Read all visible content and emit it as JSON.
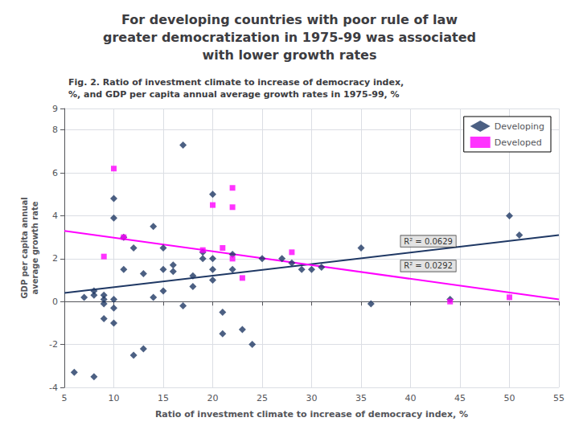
{
  "chart_data": {
    "type": "scatter",
    "title": "For developing countries with poor rule of law\ngreater democratization in 1975-99 was associated\nwith lower growth rates",
    "subtitle": "Fig. 2. Ratio of investment climate to increase of democracy index,\n%, and GDP per capita annual average growth rates in 1975-99, %",
    "xlabel": "Ratio of investment climate to increase of democracy index, %",
    "ylabel": "GDP per capita annual\naverage growth rate",
    "xlim": [
      5,
      55
    ],
    "ylim": [
      -4,
      9
    ],
    "xticks": [
      5,
      10,
      15,
      20,
      25,
      30,
      35,
      40,
      45,
      50,
      55
    ],
    "yticks": [
      -4,
      -2,
      0,
      2,
      4,
      6,
      8
    ],
    "grid": true,
    "legend": "upper right",
    "series": [
      {
        "name": "Developing",
        "color": "#1F3864",
        "marker": "diamond",
        "x": [
          6,
          7,
          8,
          8,
          8,
          9,
          9,
          9,
          9,
          10,
          10,
          10,
          10,
          10,
          11,
          11,
          12,
          12,
          13,
          13,
          14,
          14,
          15,
          15,
          15,
          16,
          16,
          17,
          17,
          18,
          18,
          19,
          19,
          20,
          20,
          20,
          20,
          21,
          21,
          22,
          22,
          23,
          24,
          25,
          27,
          28,
          29,
          30,
          31,
          35,
          36,
          44,
          50,
          51
        ],
        "values": [
          -3.3,
          0.2,
          -3.5,
          0.3,
          0.5,
          -0.8,
          0.1,
          -0.1,
          0.3,
          -1.0,
          -0.3,
          0.1,
          3.9,
          4.8,
          1.5,
          3.0,
          -2.5,
          2.5,
          1.3,
          -2.2,
          0.2,
          3.5,
          0.5,
          1.5,
          2.5,
          1.4,
          1.7,
          -0.2,
          7.3,
          0.7,
          1.2,
          2.0,
          2.3,
          1.0,
          1.5,
          2.0,
          5.0,
          -0.5,
          -1.5,
          1.5,
          2.2,
          -1.3,
          -2.0,
          2.0,
          2.0,
          1.8,
          1.5,
          1.5,
          1.6,
          2.5,
          -0.1,
          0.1,
          4.0,
          3.1
        ],
        "trend": [
          0.4,
          3.1
        ]
      },
      {
        "name": "Developed",
        "color": "#FF00FF",
        "marker": "square",
        "x": [
          9,
          10,
          11,
          19,
          20,
          21,
          22,
          22,
          22,
          23,
          28,
          44,
          50
        ],
        "values": [
          2.1,
          6.2,
          3.0,
          2.4,
          4.5,
          2.5,
          2.0,
          4.4,
          5.3,
          1.1,
          2.3,
          0.0,
          0.2
        ],
        "trend": [
          3.3,
          0.1
        ]
      }
    ],
    "annotations": [
      {
        "text": "R² = 0.0629",
        "x": 39,
        "y": 2.55
      },
      {
        "text": "R² = 0.0292",
        "x": 39,
        "y": 1.4
      }
    ]
  }
}
